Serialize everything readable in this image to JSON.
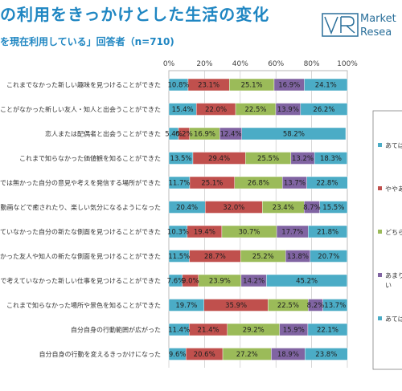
{
  "header": {
    "title": "の利用をきっかけとした生活の変化",
    "subtitle": "を現在利用している」回答者（n=710)",
    "logo_line1": "Market",
    "logo_line2": "Resea"
  },
  "footer": {
    "copyright": ""
  },
  "colors": {
    "series": [
      "#4bacc6",
      "#c0504d",
      "#9bbb59",
      "#8064a2",
      "#4bacc6"
    ],
    "title": "#1f86c2",
    "grid": "#bfbfbf"
  },
  "chart_data": {
    "type": "bar",
    "orientation": "horizontal",
    "stacked": "percent",
    "xlim": [
      0,
      100
    ],
    "x_ticks": [
      "0%",
      "20%",
      "40%",
      "60%",
      "80%",
      "100%"
    ],
    "categories": [
      "これまでなかった新しい趣味を見つけることができた",
      "出会うことがなかった新しい友人・知人と出会うことができた",
      "恋人または配偶者と出会うことができた",
      "これまで知らなかった価値観を知ることができた",
      "では無かった自分の意見や考えを発信する場所ができた",
      "や、動画などで癒されたり、楽しい気分になるようになった",
      "考えていなかった自分の新たな側面を見つけることができた",
      "なかった友人や知人の新たな側面を見つけることができた",
      "れまで考えていなかった新しい仕事を見つけることができた",
      "これまで知らなかった場所や景色を知ることができた",
      "自分自身の行動範囲が広がった",
      "自分自身の行動を変えるきっかけになった"
    ],
    "series": [
      {
        "name": "あては",
        "values": [
          10.8,
          15.4,
          5.4,
          13.5,
          11.7,
          20.4,
          10.3,
          11.5,
          7.6,
          19.7,
          11.4,
          9.6
        ],
        "labels": [
          "10.8%",
          "15.4%",
          "5.4%",
          "13.5%",
          "11.7%",
          "20.4%",
          "10.3%",
          "11.5%",
          "7.6%",
          "19.7%",
          "11.4%",
          "9.6%"
        ]
      },
      {
        "name": "ややあ",
        "values": [
          23.1,
          22.0,
          6.2,
          29.4,
          25.1,
          32.0,
          19.4,
          28.7,
          9.0,
          35.9,
          21.4,
          20.6
        ],
        "labels": [
          "23.1%",
          "22.0%",
          "6.2%",
          "29.4%",
          "25.1%",
          "32.0%",
          "19.4%",
          "28.7%",
          "9.0%",
          "35.9%",
          "21.4%",
          "20.6%"
        ]
      },
      {
        "name": "どちら",
        "values": [
          25.1,
          22.5,
          16.9,
          25.5,
          26.8,
          23.4,
          30.7,
          25.2,
          23.9,
          22.5,
          29.2,
          27.2
        ],
        "labels": [
          "25.1%",
          "22.5%",
          "16.9%",
          "25.5%",
          "26.8%",
          "23.4%",
          "30.7%",
          "25.2%",
          "23.9%",
          "22.5%",
          "29.2%",
          "27.2%"
        ]
      },
      {
        "name": "あまり\nい",
        "values": [
          16.9,
          13.9,
          12.4,
          13.2,
          13.7,
          8.7,
          17.7,
          13.8,
          14.2,
          8.2,
          15.9,
          18.9
        ],
        "labels": [
          "16.9%",
          "13.9%",
          "12.4%",
          "13.2%",
          "13.7%",
          "8.7%",
          "17.7%",
          "13.8%",
          "14.2%",
          "8.2%",
          "15.9%",
          "18.9%"
        ]
      },
      {
        "name": "あては",
        "values": [
          24.1,
          26.2,
          58.2,
          18.3,
          22.8,
          15.5,
          21.8,
          20.7,
          45.2,
          13.7,
          22.1,
          23.8
        ],
        "labels": [
          "24.1%",
          "26.2%",
          "58.2%",
          "18.3%",
          "22.8%",
          "15.5%",
          "21.8%",
          "20.7%",
          "45.2%",
          "13.7%",
          "22.1%",
          "23.8%"
        ]
      }
    ],
    "legend": "right",
    "grid": true
  }
}
